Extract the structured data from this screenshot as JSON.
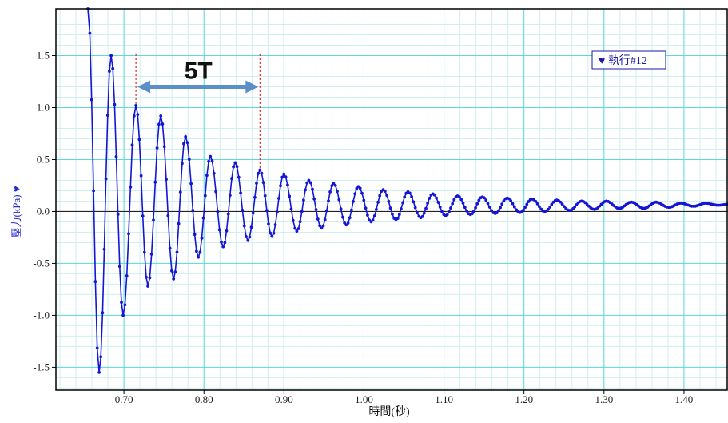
{
  "chart_data": {
    "type": "line",
    "xlabel": "時間(秒)",
    "ylabel": "壓力(kPa)",
    "ylabel_marker": "♥",
    "xlim": [
      0.615,
      1.455
    ],
    "ylim": [
      -1.72,
      1.95
    ],
    "x_ticks": [
      0.7,
      0.8,
      0.9,
      1.0,
      1.1,
      1.2,
      1.3,
      1.4
    ],
    "x_tick_labels": [
      "0.70",
      "0.80",
      "0.90",
      "1.00",
      "1.10",
      "1.20",
      "1.30",
      "1.40"
    ],
    "y_ticks": [
      -1.5,
      -1.0,
      -0.5,
      0.0,
      0.5,
      1.0,
      1.5
    ],
    "y_tick_labels": [
      "-1.5",
      "-1.0",
      "-0.5",
      "0.0",
      "0.5",
      "1.0",
      "1.5"
    ],
    "grid": true,
    "legend": {
      "position": "top-right",
      "entries": [
        "♥ 執行#12"
      ]
    },
    "series": [
      {
        "name": "執行#12",
        "color": "#1515d6",
        "peaks": [
          [
            0.655,
            1.95
          ],
          [
            0.669,
            -1.55
          ],
          [
            0.684,
            1.5
          ],
          [
            0.699,
            -1.0
          ],
          [
            0.715,
            1.02
          ],
          [
            0.73,
            -0.72
          ],
          [
            0.746,
            0.92
          ],
          [
            0.762,
            -0.65
          ],
          [
            0.777,
            0.72
          ],
          [
            0.793,
            -0.44
          ],
          [
            0.808,
            0.53
          ],
          [
            0.824,
            -0.34
          ],
          [
            0.839,
            0.47
          ],
          [
            0.855,
            -0.28
          ],
          [
            0.87,
            0.4
          ],
          [
            0.885,
            -0.24
          ],
          [
            0.9,
            0.36
          ],
          [
            0.916,
            -0.19
          ],
          [
            0.931,
            0.3
          ],
          [
            0.947,
            -0.16
          ],
          [
            0.962,
            0.27
          ],
          [
            0.978,
            -0.13
          ],
          [
            0.993,
            0.24
          ],
          [
            1.009,
            -0.1
          ],
          [
            1.024,
            0.21
          ],
          [
            1.04,
            -0.08
          ],
          [
            1.055,
            0.19
          ],
          [
            1.071,
            -0.06
          ],
          [
            1.086,
            0.17
          ],
          [
            1.102,
            -0.04
          ],
          [
            1.117,
            0.15
          ],
          [
            1.133,
            -0.03
          ],
          [
            1.148,
            0.14
          ],
          [
            1.164,
            -0.02
          ],
          [
            1.179,
            0.13
          ],
          [
            1.195,
            -0.01
          ],
          [
            1.21,
            0.12
          ],
          [
            1.226,
            0.0
          ],
          [
            1.241,
            0.11
          ],
          [
            1.257,
            0.01
          ],
          [
            1.272,
            0.1
          ],
          [
            1.288,
            0.02
          ],
          [
            1.303,
            0.1
          ],
          [
            1.319,
            0.03
          ],
          [
            1.334,
            0.09
          ],
          [
            1.35,
            0.03
          ],
          [
            1.365,
            0.09
          ],
          [
            1.381,
            0.04
          ],
          [
            1.396,
            0.08
          ],
          [
            1.412,
            0.05
          ],
          [
            1.427,
            0.08
          ],
          [
            1.443,
            0.06
          ],
          [
            1.455,
            0.07
          ]
        ]
      }
    ],
    "annotations": [
      {
        "type": "vline",
        "x": 0.715,
        "y_top": 1.52,
        "y_bottom": 1.02,
        "color": "#e02020"
      },
      {
        "type": "vline",
        "x": 0.87,
        "y_top": 1.52,
        "y_bottom": 0.4,
        "color": "#e02020"
      },
      {
        "type": "double-arrow",
        "x_from": 0.715,
        "x_to": 0.87,
        "y": 1.2,
        "color": "#5a8fc7"
      },
      {
        "type": "text",
        "text": "5T",
        "x": 0.793,
        "y": 1.37
      }
    ],
    "colors": {
      "grid_major": "#5ed8da",
      "grid_minor": "#cfeff0",
      "zero_line": "#222222",
      "frame": "#000000"
    }
  }
}
